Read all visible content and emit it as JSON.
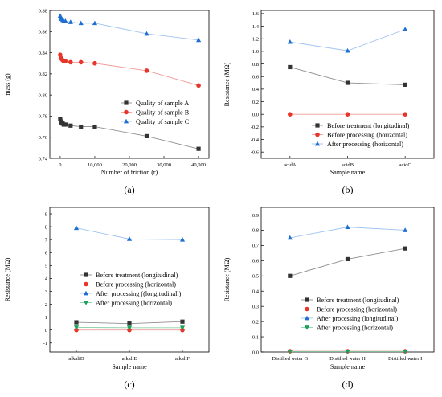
{
  "colors": {
    "black": "#333333",
    "red": "#e8352b",
    "blue": "#1f6fd1",
    "green": "#19a05a",
    "line_black": "#8f8f8f",
    "line_red": "#f09a96",
    "line_blue": "#9ec3f0",
    "line_green": "#8ad0aa"
  },
  "chart_data": [
    {
      "type": "scatter",
      "panel_label": "(a)",
      "xlabel": "Number of friction (r)",
      "ylabel": "mass (g)",
      "xlim": [
        -3000,
        43000
      ],
      "ylim": [
        0.74,
        0.88
      ],
      "xticks": [
        0,
        10000,
        20000,
        30000,
        40000
      ],
      "xtick_labels": [
        "0",
        "10,000",
        "20,000",
        "30,000",
        "40,000"
      ],
      "yticks": [
        0.74,
        0.76,
        0.78,
        0.8,
        0.82,
        0.84,
        0.86,
        0.88
      ],
      "ytick_labels": [
        "0.74",
        "0.76",
        "0.78",
        "0.80",
        "0.82",
        "0.84",
        "0.86",
        "0.88"
      ],
      "legend_position": "center-right",
      "series": [
        {
          "name": "Quality of sample A",
          "marker": "square",
          "color": "black",
          "x": [
            0,
            200,
            400,
            700,
            1000,
            1500,
            3000,
            6000,
            10000,
            25000,
            40000
          ],
          "y": [
            0.777,
            0.775,
            0.774,
            0.773,
            0.772,
            0.772,
            0.771,
            0.77,
            0.77,
            0.761,
            0.749
          ]
        },
        {
          "name": "Quality of sample B",
          "marker": "circle",
          "color": "red",
          "x": [
            0,
            200,
            400,
            700,
            1000,
            1500,
            3000,
            6000,
            10000,
            25000,
            40000
          ],
          "y": [
            0.838,
            0.835,
            0.834,
            0.833,
            0.832,
            0.832,
            0.831,
            0.831,
            0.83,
            0.823,
            0.809
          ]
        },
        {
          "name": "Quality of sample C",
          "marker": "triangle",
          "color": "blue",
          "x": [
            0,
            200,
            400,
            700,
            1000,
            1500,
            3000,
            6000,
            10000,
            25000,
            40000
          ],
          "y": [
            0.875,
            0.873,
            0.872,
            0.871,
            0.87,
            0.87,
            0.869,
            0.868,
            0.868,
            0.858,
            0.852
          ]
        }
      ]
    },
    {
      "type": "line",
      "panel_label": "(b)",
      "xlabel": "Sample name",
      "ylabel": "Resistance (MΩ)",
      "categories": [
        "acidA",
        "acidB",
        "acidC"
      ],
      "ylim": [
        -0.7,
        1.65
      ],
      "yticks": [
        -0.6,
        -0.4,
        -0.2,
        0.0,
        0.2,
        0.4,
        0.6,
        0.8,
        1.0,
        1.2,
        1.4,
        1.6
      ],
      "ytick_labels": [
        "-0.6",
        "-0.4",
        "-0.2",
        "0.0",
        "0.2",
        "0.4",
        "0.6",
        "0.8",
        "1.0",
        "1.2",
        "1.4",
        "1.6"
      ],
      "legend_position": "lower-right",
      "series": [
        {
          "name": "Before treatment (longitudinal)",
          "marker": "square",
          "color": "black",
          "values": [
            0.75,
            0.5,
            0.47
          ]
        },
        {
          "name": "Before processing (horizontal)",
          "marker": "circle",
          "color": "red",
          "values": [
            0.0,
            0.0,
            0.0
          ]
        },
        {
          "name": "After processing (horizontal)",
          "marker": "triangle",
          "color": "blue",
          "values": [
            1.15,
            1.01,
            1.35
          ]
        }
      ]
    },
    {
      "type": "line",
      "panel_label": "(c)",
      "xlabel": "Sample name",
      "ylabel": "Resistance (MΩ)",
      "categories": [
        "alkaliD",
        "alkaliE",
        "alkaliF"
      ],
      "ylim": [
        -1.7,
        9.5
      ],
      "yticks": [
        -1,
        0,
        1,
        2,
        3,
        4,
        5,
        6,
        7,
        8,
        9
      ],
      "ytick_labels": [
        "-1",
        "0",
        "1",
        "2",
        "3",
        "4",
        "5",
        "6",
        "7",
        "8",
        "9"
      ],
      "legend_position": "center-right",
      "series": [
        {
          "name": "Before treatment (longitudinal)",
          "marker": "square",
          "color": "black",
          "values": [
            0.6,
            0.5,
            0.65
          ]
        },
        {
          "name": "Before processing (horizontal)",
          "marker": "circle",
          "color": "red",
          "values": [
            0.0,
            0.0,
            0.0
          ]
        },
        {
          "name": "After processing ((longitudinall)",
          "marker": "triangle",
          "color": "blue",
          "values": [
            7.9,
            7.05,
            7.0
          ]
        },
        {
          "name": "After processing (horizontal)",
          "marker": "triangle-down",
          "color": "green",
          "values": [
            0.2,
            0.18,
            0.18
          ]
        }
      ]
    },
    {
      "type": "line",
      "panel_label": "(d)",
      "xlabel": "Sample name",
      "ylabel": "Resistance (MΩ)",
      "categories": [
        "Distilled water G",
        "Distilled water H",
        "Distilled water I"
      ],
      "ylim": [
        0,
        0.95
      ],
      "yticks": [
        0.0,
        0.1,
        0.2,
        0.3,
        0.4,
        0.5,
        0.6,
        0.7,
        0.8,
        0.9
      ],
      "ytick_labels": [
        "0.0",
        "0.1",
        "0.2",
        "0.3",
        "0.4",
        "0.5",
        "0.6",
        "0.7",
        "0.8",
        "0.9"
      ],
      "legend_position": "lower-right",
      "series": [
        {
          "name": "Before treatment (longitudinal)",
          "marker": "square",
          "color": "black",
          "values": [
            0.5,
            0.61,
            0.68
          ]
        },
        {
          "name": "Before processing (horizontal)",
          "marker": "circle",
          "color": "red",
          "values": [
            0.005,
            0.005,
            0.005
          ]
        },
        {
          "name": "After processing (longitudinal)",
          "marker": "triangle",
          "color": "blue",
          "values": [
            0.75,
            0.82,
            0.8
          ]
        },
        {
          "name": "After processing (horizontal)",
          "marker": "triangle-down",
          "color": "green",
          "values": [
            0.003,
            0.003,
            0.003
          ]
        }
      ]
    }
  ]
}
